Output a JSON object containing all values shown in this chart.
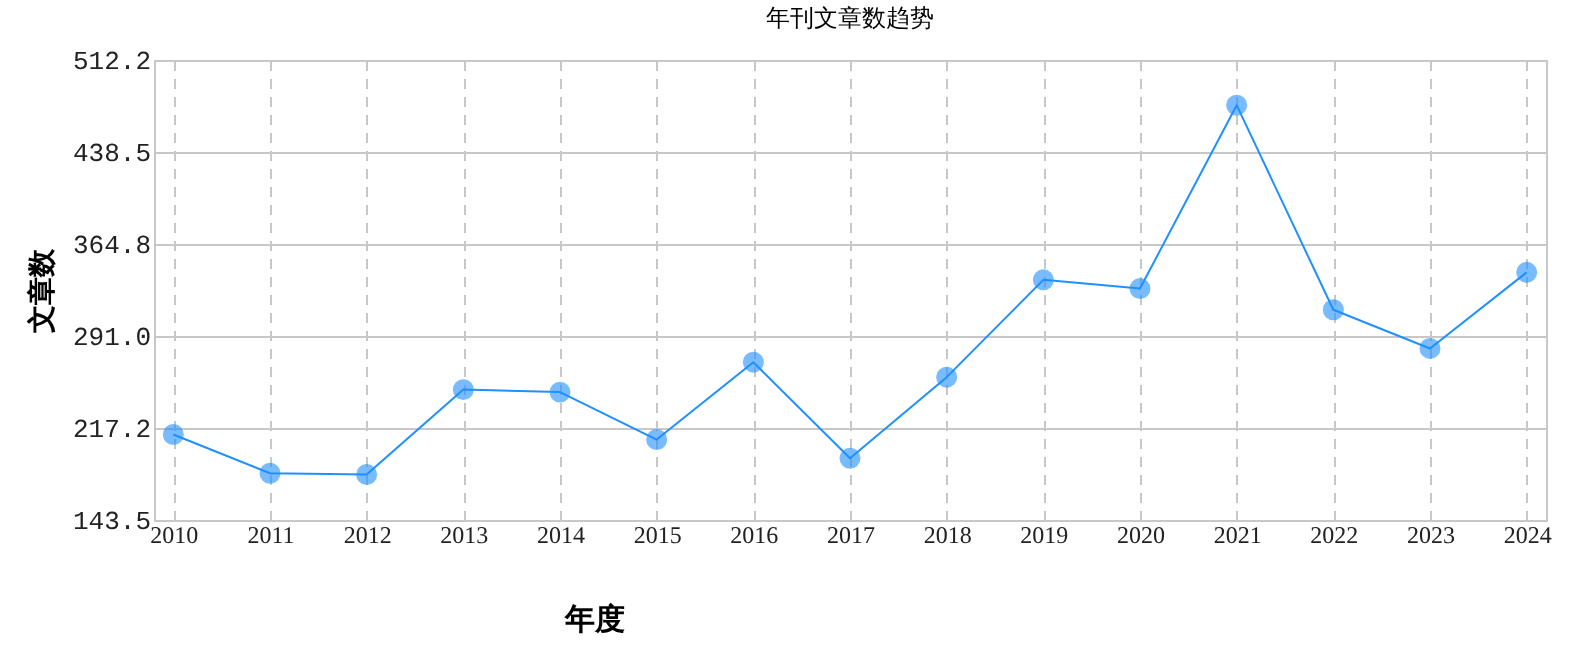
{
  "chart_data": {
    "type": "line",
    "title": "年刊文章数趋势",
    "xlabel": "年度",
    "ylabel": "文章数",
    "categories": [
      "2010",
      "2011",
      "2012",
      "2013",
      "2014",
      "2015",
      "2016",
      "2017",
      "2018",
      "2019",
      "2020",
      "2021",
      "2022",
      "2023",
      "2024"
    ],
    "series": [
      {
        "color": "#1e90ff",
        "values": [
          212,
          181,
          180,
          248,
          246,
          208,
          270,
          193,
          258,
          336,
          329,
          476,
          312,
          281,
          342
        ]
      }
    ],
    "ylim": [
      143.5,
      512.2
    ],
    "yticks": [
      {
        "value": 143.5,
        "label": "143.5"
      },
      {
        "value": 217.2,
        "label": "217.2"
      },
      {
        "value": 291,
        "label": "291.0"
      },
      {
        "value": 364.8,
        "label": "364.8"
      },
      {
        "value": 438.5,
        "label": "438.5"
      },
      {
        "value": 512.2,
        "label": "512.2"
      }
    ],
    "grid": true,
    "marker": "circle",
    "line_style": "solid"
  }
}
